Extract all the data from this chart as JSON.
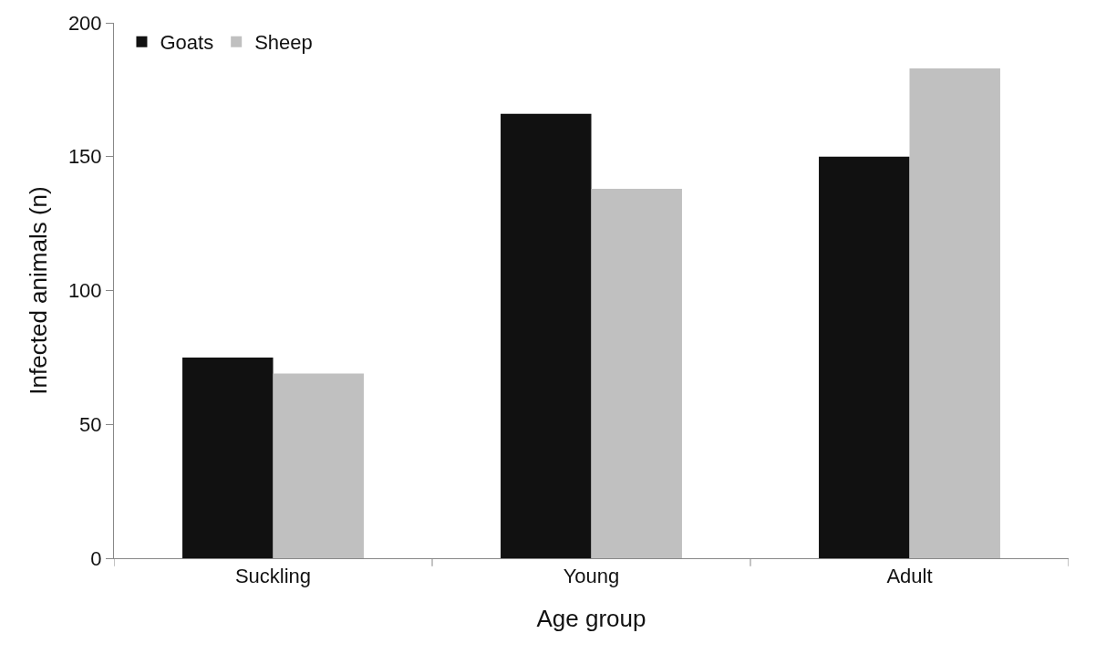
{
  "chart_data": {
    "type": "bar",
    "xlabel": "Age group",
    "ylabel": "Infected animals (n)",
    "categories": [
      "Suckling",
      "Young",
      "Adult"
    ],
    "series": [
      {
        "name": "Goats",
        "color": "#111111",
        "values": [
          75,
          166,
          150
        ]
      },
      {
        "name": "Sheep",
        "color": "#c0c0c0",
        "values": [
          69,
          138,
          183
        ]
      }
    ],
    "ylim": [
      0,
      200
    ],
    "yticks": [
      0,
      50,
      100,
      150,
      200
    ],
    "legend": "top left"
  }
}
